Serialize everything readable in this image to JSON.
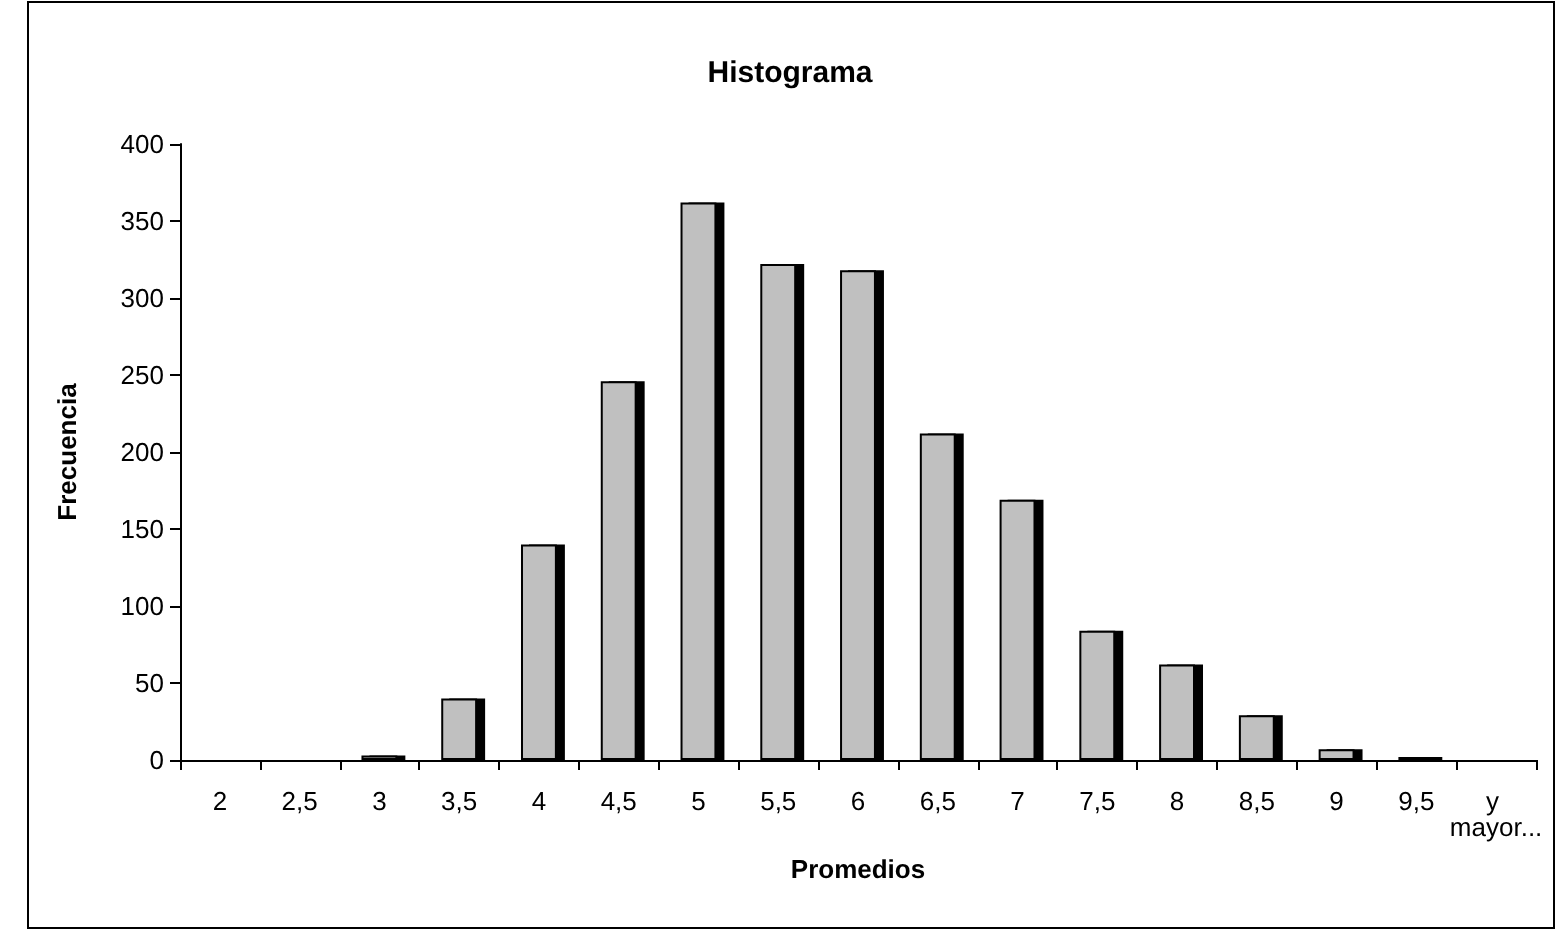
{
  "chart_data": {
    "type": "bar",
    "title": "Histograma",
    "xlabel": "Promedios",
    "ylabel": "Frecuencia",
    "categories": [
      "2",
      "2,5",
      "3",
      "3,5",
      "4",
      "4,5",
      "5",
      "5,5",
      "6",
      "6,5",
      "7",
      "7,5",
      "8",
      "8,5",
      "9",
      "9,5",
      "y mayor..."
    ],
    "values": [
      0,
      0,
      3,
      40,
      140,
      246,
      362,
      322,
      318,
      212,
      169,
      84,
      62,
      29,
      7,
      2,
      0
    ],
    "color": "#c0c0c0",
    "ylim": [
      0,
      400
    ],
    "yticks": [
      0,
      50,
      100,
      150,
      200,
      250,
      300,
      350,
      400
    ],
    "grid": false
  }
}
